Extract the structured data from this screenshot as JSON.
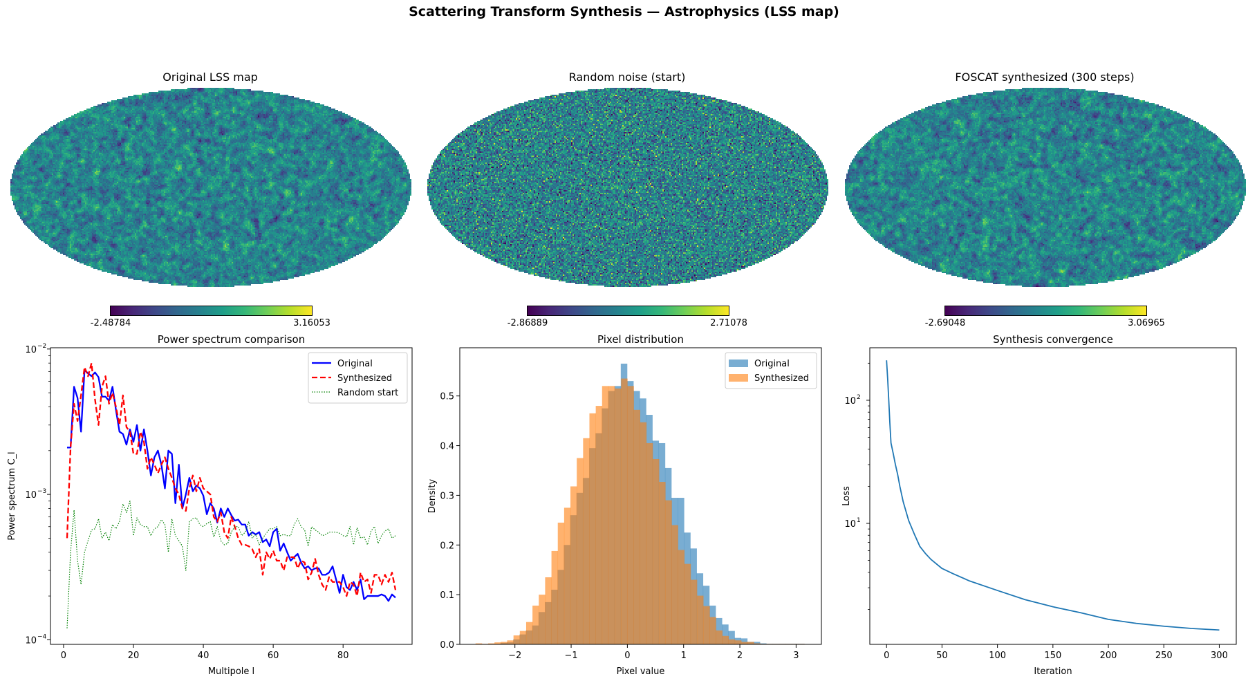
{
  "suptitle": "Scattering Transform Synthesis — Astrophysics (LSS map)",
  "maps": [
    {
      "title": "Original LSS map",
      "cbar_min": "-2.48784",
      "cbar_max": "3.16053",
      "style": "smooth"
    },
    {
      "title": "Random noise (start)",
      "cbar_min": "-2.86889",
      "cbar_max": "2.71078",
      "style": "white"
    },
    {
      "title": "FOSCAT synthesized (300 steps)",
      "cbar_min": "-2.69048",
      "cbar_max": "3.06965",
      "style": "smooth"
    }
  ],
  "colormap": "viridis",
  "chart_data": [
    {
      "type": "line",
      "title": "Power spectrum comparison",
      "xlabel": "Multipole l",
      "ylabel": "Power spectrum C_l",
      "yscale": "log",
      "xlim": [
        -3.75,
        99.75
      ],
      "ylim": [
        9.3e-05,
        0.0102
      ],
      "xticks": [
        0,
        20,
        40,
        60,
        80
      ],
      "yticks": [
        {
          "value": 0.0001,
          "label": "10",
          "exp": "−4"
        },
        {
          "value": 0.001,
          "label": "10",
          "exp": "−3"
        },
        {
          "value": 0.01,
          "label": "10",
          "exp": "−2"
        }
      ],
      "legend": "top-right",
      "x_start": 1,
      "series": [
        {
          "name": "Original",
          "color": "#0000ff",
          "style": "solid",
          "values": [
            0.0021,
            0.0021,
            0.0055,
            0.0046,
            0.0027,
            0.0072,
            0.0068,
            0.0065,
            0.0069,
            0.0064,
            0.0047,
            0.0047,
            0.0044,
            0.0055,
            0.0038,
            0.0027,
            0.0026,
            0.0022,
            0.0028,
            0.0023,
            0.003,
            0.002,
            0.0028,
            0.002,
            0.00135,
            0.0018,
            0.002,
            0.0016,
            0.0011,
            0.002,
            0.0019,
            0.00087,
            0.0016,
            0.0008,
            0.001,
            0.0013,
            0.00105,
            0.00115,
            0.0011,
            0.00098,
            0.00073,
            0.00087,
            0.0008,
            0.00064,
            0.0008,
            0.0007,
            0.0008,
            0.00072,
            0.00066,
            0.00067,
            0.00062,
            0.00062,
            0.00052,
            0.00055,
            0.00053,
            0.00055,
            0.00047,
            0.00049,
            0.00044,
            0.00055,
            0.00058,
            0.00041,
            0.00046,
            0.0004,
            0.00035,
            0.00037,
            0.00039,
            0.00034,
            0.00031,
            0.00032,
            0.0003,
            0.00031,
            0.00031,
            0.00028,
            0.00028,
            0.00029,
            0.00032,
            0.00026,
            0.00021,
            0.00028,
            0.00023,
            0.00022,
            0.00025,
            0.00022,
            0.00026,
            0.00019,
            0.0002,
            0.0002,
            0.0002,
            0.0002,
            0.000205,
            0.0002,
            0.000185,
            0.000205,
            0.000195
          ]
        },
        {
          "name": "Synthesized",
          "color": "#ff0000",
          "style": "dashed",
          "values": [
            0.0005,
            0.0021,
            0.0042,
            0.0032,
            0.0048,
            0.0075,
            0.0065,
            0.008,
            0.0045,
            0.003,
            0.0055,
            0.0065,
            0.0042,
            0.005,
            0.004,
            0.003,
            0.0048,
            0.0029,
            0.0027,
            0.0019,
            0.0019,
            0.0027,
            0.0023,
            0.0015,
            0.0018,
            0.0016,
            0.0014,
            0.0016,
            0.0018,
            0.0015,
            0.0013,
            0.0011,
            0.001,
            0.0008,
            0.00077,
            0.0011,
            0.00135,
            0.00105,
            0.0013,
            0.0011,
            0.00105,
            0.001,
            0.0007,
            0.00065,
            0.00075,
            0.00055,
            0.0005,
            0.0007,
            0.0006,
            0.0005,
            0.00045,
            0.00045,
            0.00044,
            0.00042,
            0.00037,
            0.00042,
            0.00028,
            0.0004,
            0.00036,
            0.00041,
            0.00035,
            0.00035,
            0.0003,
            0.00037,
            0.00037,
            0.00037,
            0.00031,
            0.00035,
            0.00034,
            0.00026,
            0.00029,
            0.00036,
            0.00028,
            0.00024,
            0.00022,
            0.00027,
            0.00025,
            0.00025,
            0.00025,
            0.00023,
            0.0002,
            0.00025,
            0.00024,
            0.0002,
            0.00029,
            0.00025,
            0.00026,
            0.00021,
            0.00028,
            0.00028,
            0.00024,
            0.00028,
            0.00025,
            0.00029,
            0.00022
          ]
        },
        {
          "name": "Random start",
          "color": "#008000",
          "style": "dotted",
          "values": [
            0.00012,
            0.0004,
            0.00078,
            0.00035,
            0.00024,
            0.0004,
            0.00048,
            0.00057,
            0.00058,
            0.00068,
            0.0005,
            0.00055,
            0.00048,
            0.00062,
            0.00058,
            0.00065,
            0.00086,
            0.00075,
            0.0009,
            0.00052,
            0.00069,
            0.00062,
            0.0006,
            0.0006,
            0.00052,
            0.00058,
            0.0006,
            0.00067,
            0.00062,
            0.0004,
            0.00068,
            0.00052,
            0.00048,
            0.00044,
            0.0003,
            0.00065,
            0.00068,
            0.00069,
            0.00062,
            0.0006,
            0.00063,
            0.00065,
            0.00051,
            0.0006,
            0.00048,
            0.00045,
            0.00046,
            0.00055,
            0.0006,
            0.0006,
            0.00052,
            0.00055,
            0.00065,
            0.0005,
            0.00053,
            0.00045,
            0.0005,
            0.00054,
            0.00058,
            0.00058,
            0.0006,
            0.00052,
            0.00053,
            0.00052,
            0.00052,
            0.00062,
            0.00068,
            0.0006,
            0.00057,
            0.00044,
            0.0006,
            0.00057,
            0.00055,
            0.00052,
            0.00053,
            0.00055,
            0.00055,
            0.00055,
            0.00054,
            0.00052,
            0.00051,
            0.0006,
            0.00045,
            0.00059,
            0.0005,
            0.00051,
            0.00045,
            0.00056,
            0.0006,
            0.00046,
            0.00052,
            0.00056,
            0.00058,
            0.0005,
            0.00052
          ]
        }
      ]
    },
    {
      "type": "bar",
      "title": "Pixel distribution",
      "xlabel": "Pixel value",
      "ylabel": "Density",
      "xlim": [
        -2.98,
        3.45
      ],
      "ylim": [
        0,
        0.597
      ],
      "xticks": [
        {
          "value": -2,
          "label": "−2"
        },
        {
          "value": -1,
          "label": "−1"
        },
        {
          "value": 0,
          "label": "0"
        },
        {
          "value": 1,
          "label": "1"
        },
        {
          "value": 2,
          "label": "2"
        },
        {
          "value": 3,
          "label": "3"
        }
      ],
      "yticks": [
        0.0,
        0.1,
        0.2,
        0.3,
        0.4,
        0.5
      ],
      "legend": "top-right",
      "series": [
        {
          "name": "Original",
          "color": "#1f77b4",
          "alpha": 0.6,
          "bin_start": -2.48,
          "bin_width": 0.1125,
          "values": [
            0.001,
            0.001,
            0.003,
            0.004,
            0.01,
            0.02,
            0.028,
            0.038,
            0.065,
            0.085,
            0.11,
            0.15,
            0.2,
            0.26,
            0.305,
            0.335,
            0.395,
            0.425,
            0.475,
            0.51,
            0.52,
            0.565,
            0.53,
            0.51,
            0.495,
            0.462,
            0.41,
            0.405,
            0.355,
            0.295,
            0.295,
            0.225,
            0.193,
            0.143,
            0.118,
            0.078,
            0.053,
            0.04,
            0.027,
            0.013,
            0.012,
            0.005,
            0.005,
            0.002,
            0.001,
            0.001,
            0.001,
            0.001,
            0.001,
            0.001
          ]
        },
        {
          "name": "Synthesized",
          "color": "#ff7f0e",
          "alpha": 0.6,
          "bin_start": -2.7,
          "bin_width": 0.1125,
          "values": [
            0.002,
            0.001,
            0.002,
            0.004,
            0.005,
            0.008,
            0.018,
            0.027,
            0.045,
            0.078,
            0.1,
            0.135,
            0.188,
            0.245,
            0.275,
            0.318,
            0.375,
            0.415,
            0.465,
            0.48,
            0.52,
            0.52,
            0.515,
            0.535,
            0.52,
            0.472,
            0.447,
            0.405,
            0.373,
            0.327,
            0.29,
            0.24,
            0.19,
            0.162,
            0.13,
            0.098,
            0.077,
            0.055,
            0.028,
            0.017,
            0.01,
            0.008,
            0.005,
            0.005,
            0.002,
            0.001,
            0.001,
            0.001,
            0.001,
            0.001,
            0.001,
            0.001
          ]
        }
      ]
    },
    {
      "type": "line",
      "title": "Synthesis convergence",
      "xlabel": "Iteration",
      "ylabel": "Loss",
      "yscale": "log",
      "xlim": [
        -15.1,
        315.3
      ],
      "ylim": [
        1.04,
        267
      ],
      "xticks": [
        0,
        50,
        100,
        150,
        200,
        250,
        300
      ],
      "yticks": [
        {
          "value": 10,
          "label": "10",
          "exp": "1"
        },
        {
          "value": 100,
          "label": "10",
          "exp": "2"
        }
      ],
      "series": [
        {
          "color": "#1f77b4",
          "style": "solid",
          "x": [
            0,
            1,
            2,
            3,
            4,
            6,
            8,
            10,
            12,
            15,
            20,
            25,
            30,
            35,
            40,
            50,
            60,
            75,
            100,
            125,
            150,
            175,
            200,
            225,
            250,
            275,
            300
          ],
          "values": [
            211,
            150,
            100,
            65,
            45,
            37,
            30,
            25,
            20,
            15,
            10.5,
            8.2,
            6.5,
            5.7,
            5.1,
            4.3,
            3.9,
            3.4,
            2.85,
            2.4,
            2.1,
            1.88,
            1.66,
            1.54,
            1.46,
            1.4,
            1.36
          ]
        }
      ]
    }
  ]
}
